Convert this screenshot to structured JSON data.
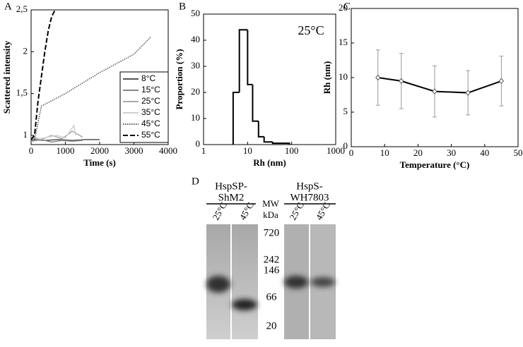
{
  "chart_data": [
    {
      "panel": "A",
      "type": "line",
      "xlabel": "Time (s)",
      "ylabel": "Scattered intensity",
      "xlim": [
        0,
        4000
      ],
      "xticks": [
        0,
        1000,
        2000,
        3000,
        4000
      ],
      "ylim": [
        0.89,
        2.5
      ],
      "yticks": [
        1,
        {
          "value": 1.5,
          "label": "1,5"
        },
        2,
        {
          "value": 2.5,
          "label": "2,5"
        }
      ],
      "legend": "lower-right",
      "series": [
        {
          "name": "8°C",
          "color": "#555555",
          "dash": "solid",
          "x": [
            0,
            400,
            800,
            1200,
            1600,
            2000
          ],
          "values": [
            0.95,
            0.94,
            0.95,
            0.94,
            0.95,
            0.95
          ]
        },
        {
          "name": "15°C",
          "color": "#888888",
          "dash": "solid",
          "x": [
            0,
            300,
            600,
            900,
            1200,
            1500
          ],
          "values": [
            0.93,
            0.95,
            0.92,
            0.94,
            0.93,
            0.94
          ]
        },
        {
          "name": "25°C",
          "color": "#aaaaaa",
          "dash": "solid",
          "x": [
            0,
            300,
            600,
            900,
            1200,
            1500
          ],
          "values": [
            0.97,
            0.95,
            1.0,
            0.96,
            1.05,
            0.98
          ]
        },
        {
          "name": "35°C",
          "color": "#d0d0d0",
          "dash": "solid",
          "x": [
            0,
            250,
            500,
            750,
            1000,
            1250,
            1300
          ],
          "values": [
            0.99,
            0.96,
            0.98,
            1.0,
            0.97,
            1.12,
            1.0
          ]
        },
        {
          "name": "45°C",
          "color": "#555555",
          "dash": "dotted",
          "x": [
            100,
            300,
            1000,
            2000,
            3000,
            3500
          ],
          "values": [
            0.95,
            1.35,
            1.5,
            1.75,
            1.97,
            2.18
          ]
        },
        {
          "name": "55°C",
          "color": "#000000",
          "dash": "dashed",
          "x": [
            0,
            100,
            200,
            300,
            400,
            500,
            600,
            700
          ],
          "values": [
            0.95,
            1.0,
            1.4,
            1.7,
            2.0,
            2.25,
            2.42,
            2.5
          ]
        }
      ]
    },
    {
      "panel": "B",
      "type": "histogram",
      "xlabel": "Rh (nm)",
      "ylabel": "Proportion (%)",
      "annotation": "25°C",
      "xscale": "log",
      "xlim": [
        1,
        1000
      ],
      "xticks": [
        1,
        10,
        100,
        1000
      ],
      "ylim": [
        0,
        50
      ],
      "yticks": [
        0,
        10,
        20,
        30,
        40,
        50
      ],
      "color": "#000000",
      "bins": [
        4.7,
        6.5,
        10,
        13,
        17.7,
        23.7,
        37,
        89
      ],
      "values": [
        20,
        44,
        23,
        9,
        3,
        1,
        0.5
      ]
    },
    {
      "panel": "C",
      "type": "errorline",
      "xlabel": "Temperature (°C)",
      "ylabel": "Rh (nm)",
      "xlim": [
        0,
        50
      ],
      "xticks": [
        0,
        10,
        20,
        30,
        40,
        50
      ],
      "ylim": [
        0,
        20
      ],
      "yticks": [
        0,
        5,
        10,
        15,
        20
      ],
      "color": "#000000",
      "x": [
        8,
        15,
        25,
        35,
        45
      ],
      "values": [
        10,
        9.5,
        8,
        7.8,
        9.5
      ],
      "errors": [
        4,
        4,
        3.7,
        3.2,
        3.6
      ]
    }
  ],
  "gel": {
    "panel": "D",
    "left_header": [
      "HspSP-",
      "ShM2"
    ],
    "right_header": [
      "HspS-",
      "WH7803"
    ],
    "lanes": [
      "25°C",
      "45°C",
      "25°C",
      "45°C"
    ],
    "mw_title": [
      "MW",
      "kDa"
    ],
    "markers": [
      "720",
      "242",
      "146",
      "66",
      "20"
    ]
  }
}
